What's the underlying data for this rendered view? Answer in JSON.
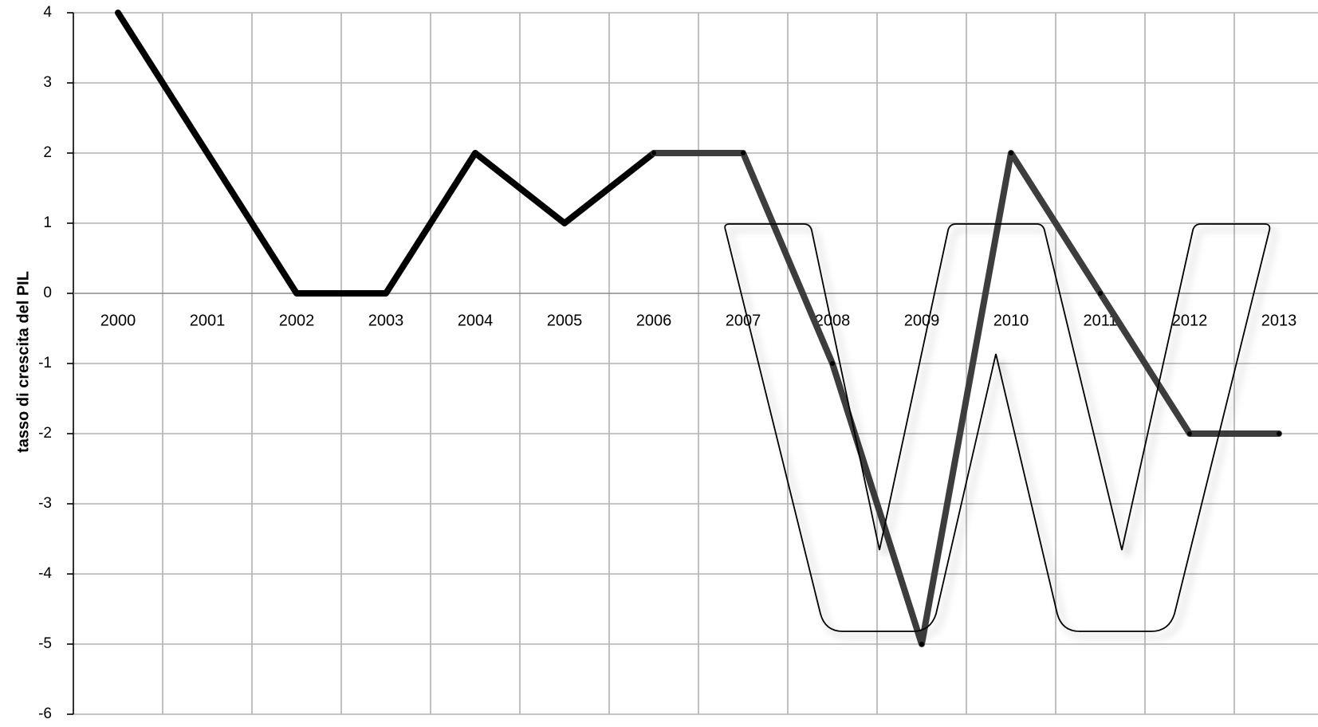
{
  "chart_data": {
    "type": "line",
    "title": "",
    "xlabel": "",
    "ylabel": "tasso di crescita del PIL",
    "ylim": [
      -6,
      4
    ],
    "yticks": [
      4,
      3,
      2,
      1,
      0,
      -1,
      -2,
      -3,
      -4,
      -5,
      -6
    ],
    "categories": [
      "2000",
      "2001",
      "2002",
      "2003",
      "2004",
      "2005",
      "2006",
      "2007",
      "2008",
      "2009",
      "2010",
      "2011",
      "2012",
      "2013"
    ],
    "grid": true,
    "legend": "none",
    "series": [
      {
        "values": [
          4,
          2,
          0,
          0,
          2,
          1,
          2,
          2,
          -1,
          -5,
          2,
          0,
          -2,
          -2
        ],
        "color_early": "#000000",
        "color_late": "#3d3d3d"
      }
    ],
    "annotations": [
      {
        "type": "letter-outline",
        "glyph": "W",
        "meaning": "W-shaped recession"
      }
    ]
  }
}
